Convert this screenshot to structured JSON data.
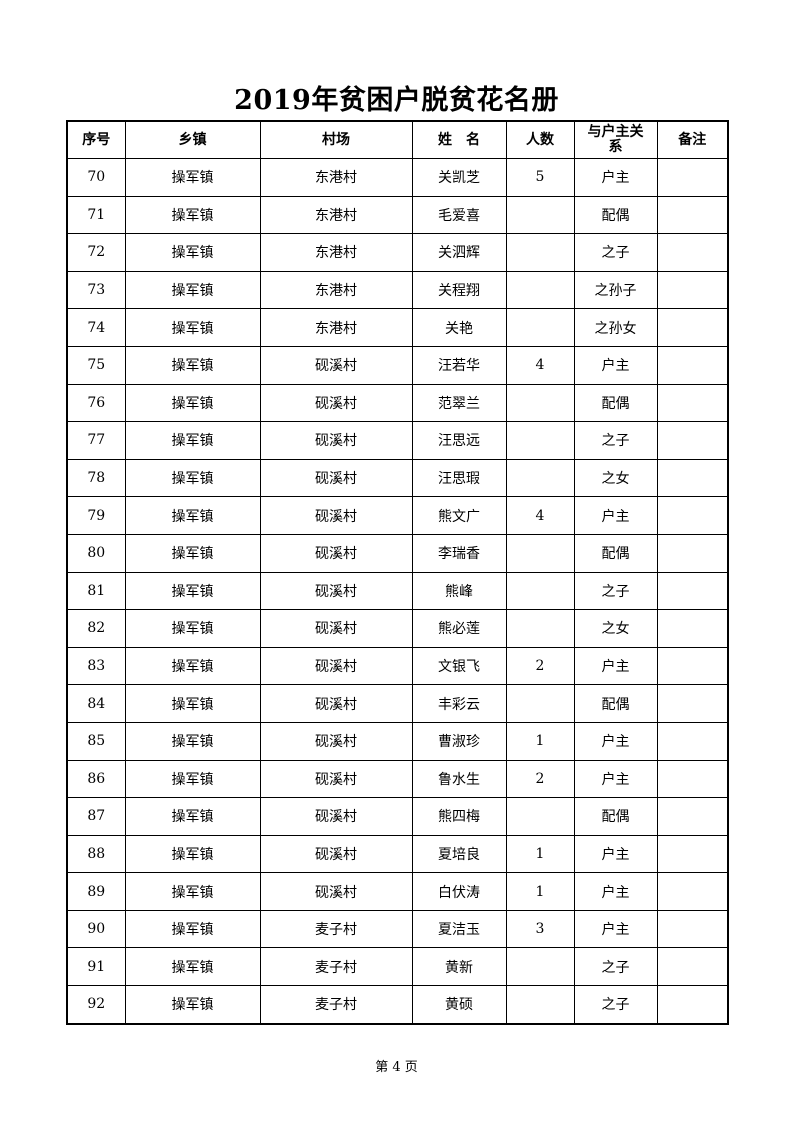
{
  "title": "2019年贫困户脱贫花名册",
  "columns": [
    "序号",
    "乡镇",
    "村场",
    "姓　名",
    "人数",
    "与户主关系",
    "备注"
  ],
  "rows": [
    [
      "70",
      "操军镇",
      "东港村",
      "关凯芝",
      "5",
      "户主",
      ""
    ],
    [
      "71",
      "操军镇",
      "东港村",
      "毛爱喜",
      "",
      "配偶",
      ""
    ],
    [
      "72",
      "操军镇",
      "东港村",
      "关泗辉",
      "",
      "之子",
      ""
    ],
    [
      "73",
      "操军镇",
      "东港村",
      "关程翔",
      "",
      "之孙子",
      ""
    ],
    [
      "74",
      "操军镇",
      "东港村",
      "关艳",
      "",
      "之孙女",
      ""
    ],
    [
      "75",
      "操军镇",
      "砚溪村",
      "汪若华",
      "4",
      "户主",
      ""
    ],
    [
      "76",
      "操军镇",
      "砚溪村",
      "范翠兰",
      "",
      "配偶",
      ""
    ],
    [
      "77",
      "操军镇",
      "砚溪村",
      "汪思远",
      "",
      "之子",
      ""
    ],
    [
      "78",
      "操军镇",
      "砚溪村",
      "汪思瑕",
      "",
      "之女",
      ""
    ],
    [
      "79",
      "操军镇",
      "砚溪村",
      "熊文广",
      "4",
      "户主",
      ""
    ],
    [
      "80",
      "操军镇",
      "砚溪村",
      "李瑞香",
      "",
      "配偶",
      ""
    ],
    [
      "81",
      "操军镇",
      "砚溪村",
      "熊峰",
      "",
      "之子",
      ""
    ],
    [
      "82",
      "操军镇",
      "砚溪村",
      "熊必莲",
      "",
      "之女",
      ""
    ],
    [
      "83",
      "操军镇",
      "砚溪村",
      "文银飞",
      "2",
      "户主",
      ""
    ],
    [
      "84",
      "操军镇",
      "砚溪村",
      "丰彩云",
      "",
      "配偶",
      ""
    ],
    [
      "85",
      "操军镇",
      "砚溪村",
      "曹淑珍",
      "1",
      "户主",
      ""
    ],
    [
      "86",
      "操军镇",
      "砚溪村",
      "鲁水生",
      "2",
      "户主",
      ""
    ],
    [
      "87",
      "操军镇",
      "砚溪村",
      "熊四梅",
      "",
      "配偶",
      ""
    ],
    [
      "88",
      "操军镇",
      "砚溪村",
      "夏培良",
      "1",
      "户主",
      ""
    ],
    [
      "89",
      "操军镇",
      "砚溪村",
      "白伏涛",
      "1",
      "户主",
      ""
    ],
    [
      "90",
      "操军镇",
      "麦子村",
      "夏洁玉",
      "3",
      "户主",
      ""
    ],
    [
      "91",
      "操军镇",
      "麦子村",
      "黄新",
      "",
      "之子",
      ""
    ],
    [
      "92",
      "操军镇",
      "麦子村",
      "黄硕",
      "",
      "之子",
      ""
    ]
  ],
  "footer": "第 4 页"
}
